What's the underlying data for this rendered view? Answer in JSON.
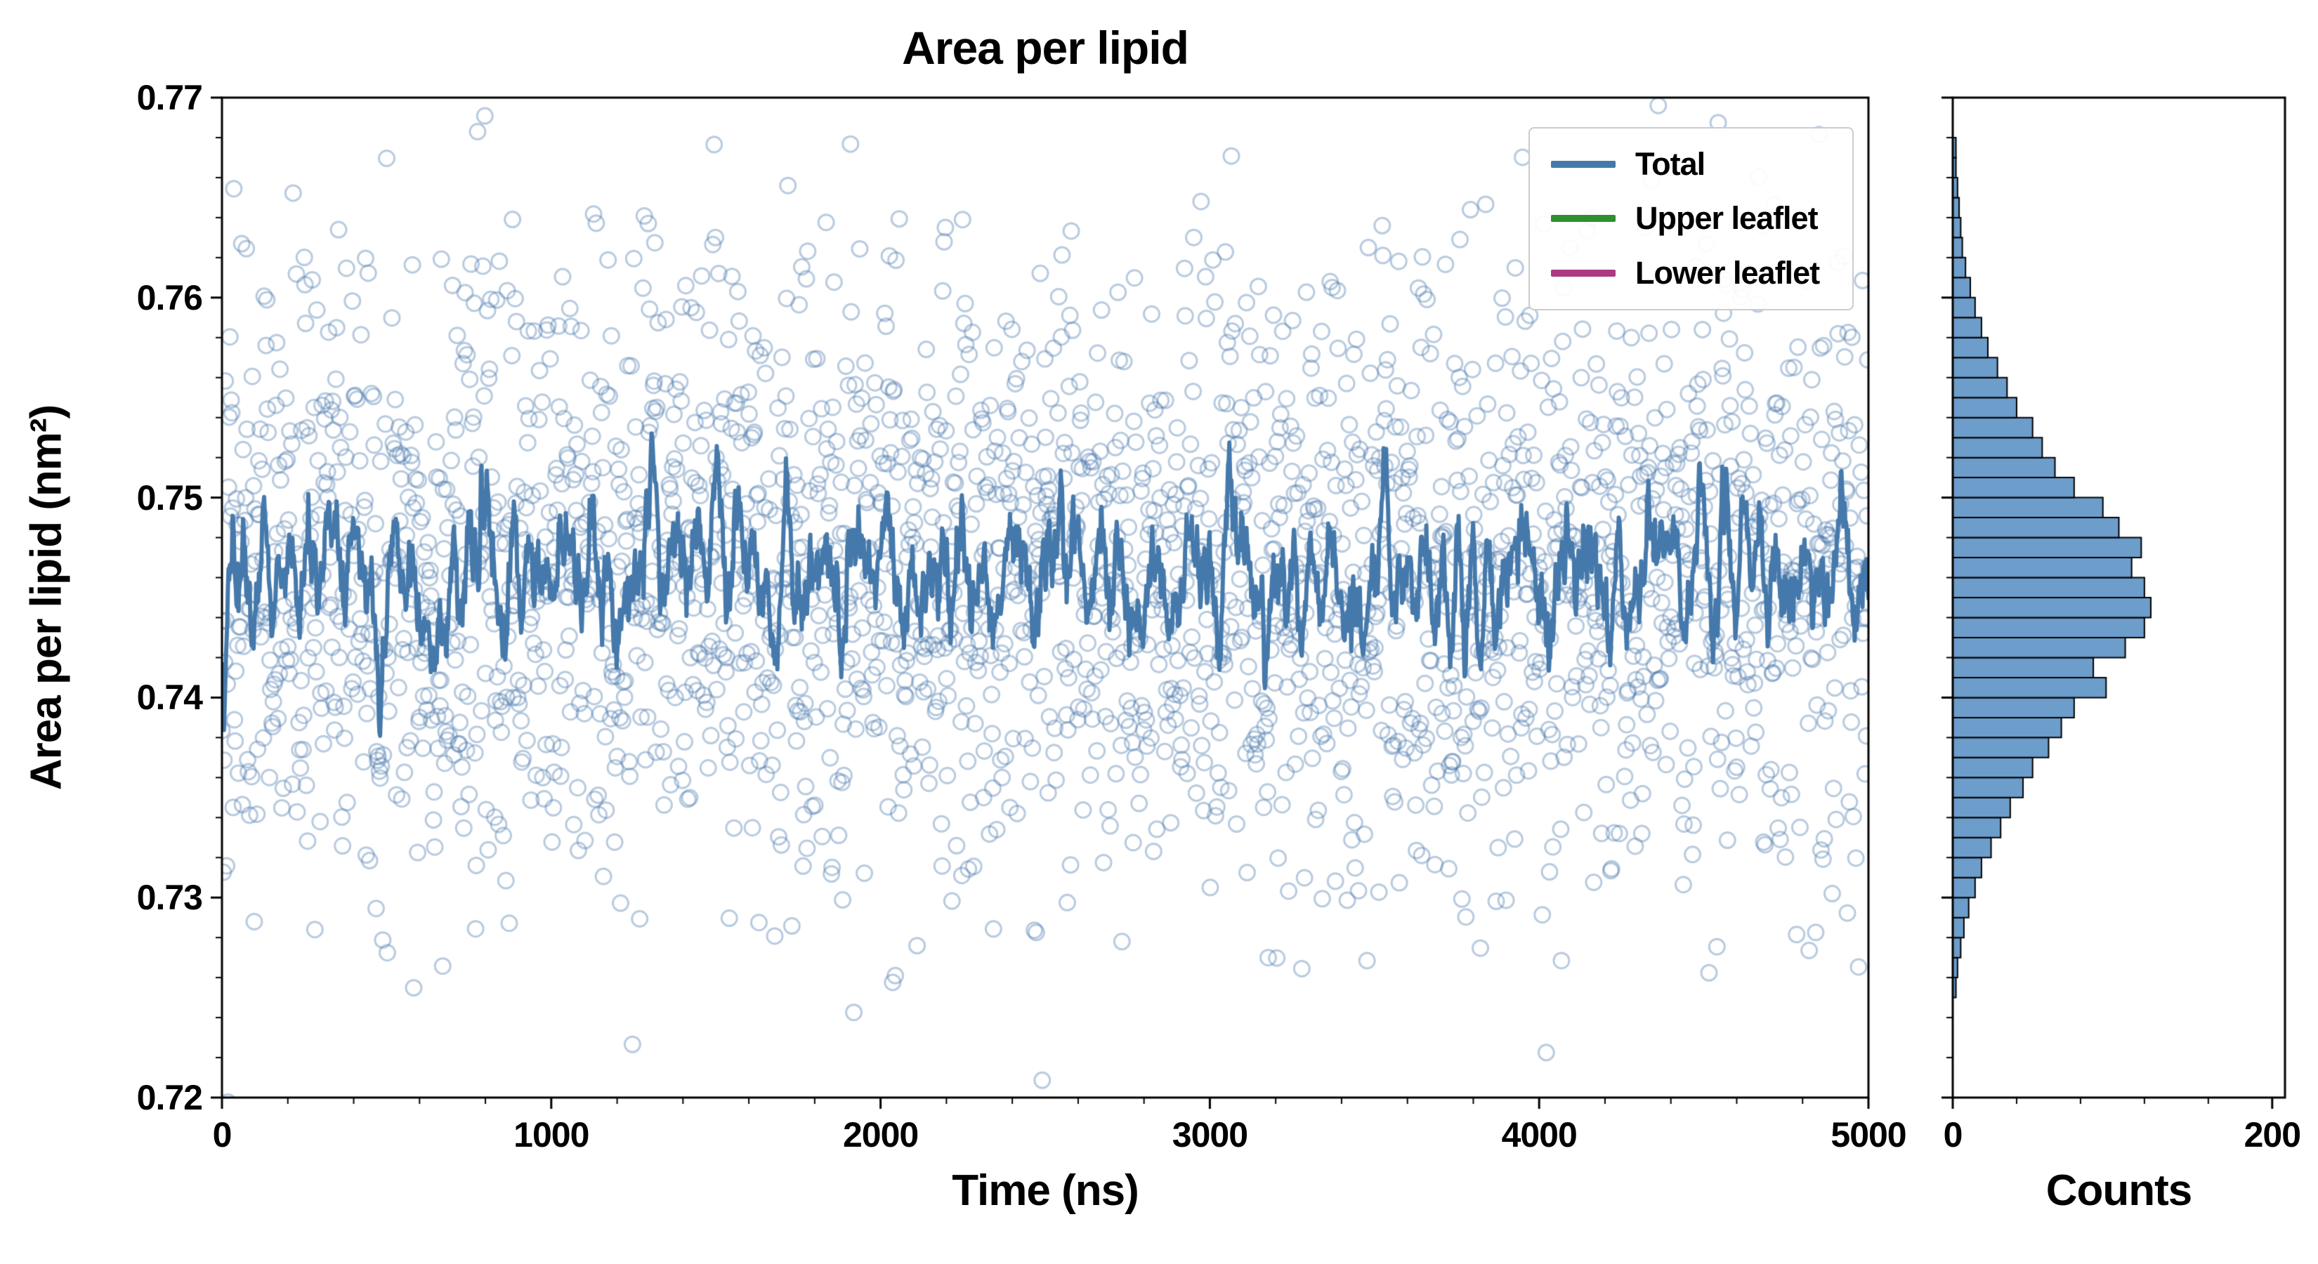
{
  "chart_data": [
    {
      "type": "scatter",
      "title": "Area per lipid",
      "xlabel": "Time (ns)",
      "ylabel": "Area per lipid (nm²)",
      "xlim": [
        0,
        5000
      ],
      "ylim": [
        0.72,
        0.77
      ],
      "xticks": [
        0,
        1000,
        2000,
        3000,
        4000,
        5000
      ],
      "yticks": [
        0.72,
        0.73,
        0.74,
        0.75,
        0.76,
        0.77
      ],
      "grid": false,
      "legend": {
        "position": "upper right",
        "entries": [
          {
            "label": "Total",
            "color": "#4579ab"
          },
          {
            "label": "Upper leaflet",
            "color": "#2f8f2f"
          },
          {
            "label": "Lower leaflet",
            "color": "#ad3884"
          }
        ]
      },
      "series_generation": {
        "description": "raw area-per-lipid samples (hollow circles) with rolling-mean line",
        "seed": 42,
        "n_points": 2500,
        "t_start": 0,
        "t_end": 5000,
        "mean": 0.746,
        "std": 0.008,
        "rolling_window": 13,
        "scatter_color": "rgba(70,118,170,0.38)",
        "line_color": "#4579ab",
        "line_width": 6,
        "marker_radius": 11
      }
    },
    {
      "type": "bar",
      "orientation": "horizontal",
      "xlabel": "Counts",
      "xlim": [
        0,
        208
      ],
      "xticks": [
        0,
        200
      ],
      "ylim": [
        0.72,
        0.77
      ],
      "bin_start": 0.725,
      "bin_width": 0.001,
      "counts": [
        2,
        3,
        5,
        7,
        10,
        14,
        18,
        24,
        30,
        36,
        44,
        50,
        60,
        68,
        76,
        96,
        88,
        108,
        120,
        124,
        120,
        112,
        118,
        104,
        94,
        76,
        64,
        56,
        50,
        40,
        34,
        28,
        22,
        18,
        14,
        11,
        8,
        6,
        5,
        4,
        3,
        2,
        2
      ],
      "bar_color": "rgba(93,146,196,0.9)",
      "bar_edge": "#000000"
    }
  ]
}
